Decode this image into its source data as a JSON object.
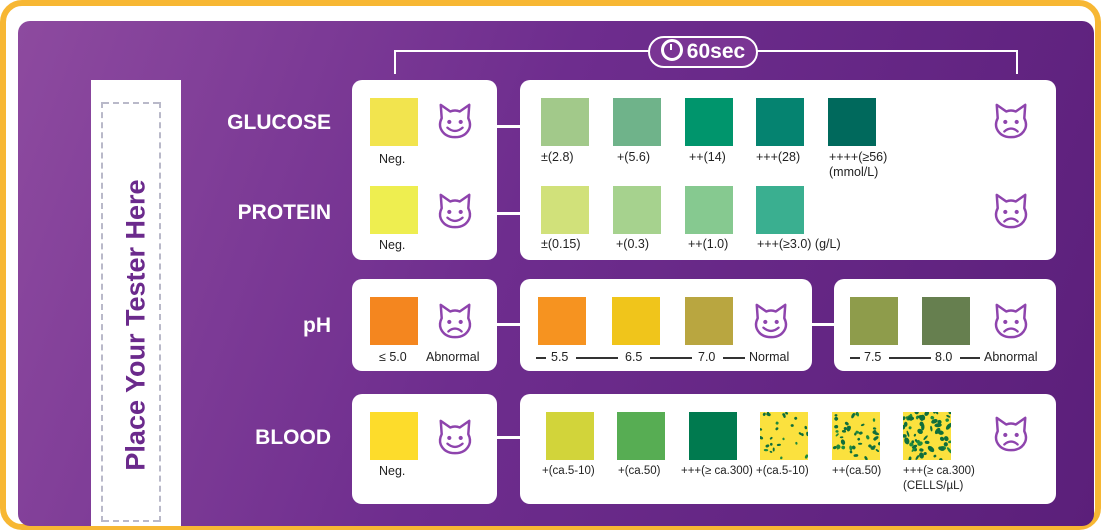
{
  "timer": {
    "label": "60sec",
    "icon": "clock-icon"
  },
  "tester": {
    "label": "Place Your Tester Here"
  },
  "rows": {
    "glucose": {
      "label": "GLUCOSE",
      "normal": {
        "label": "Neg.",
        "color": "#f2e44e"
      },
      "swatches": [
        {
          "label": "±(2.8)",
          "color": "#a2c98a"
        },
        {
          "label": "+(5.6)",
          "color": "#6fb38a"
        },
        {
          "label": "++(14)",
          "color": "#00956c"
        },
        {
          "label": "+++(28)",
          "color": "#058370"
        },
        {
          "label": "++++(≥56)",
          "color": "#00695c"
        }
      ],
      "unit": "(mmol/L)"
    },
    "protein": {
      "label": "PROTEIN",
      "normal": {
        "label": "Neg.",
        "color": "#eeee50"
      },
      "swatches": [
        {
          "label": "±(0.15)",
          "color": "#d1e17a"
        },
        {
          "label": "+(0.3)",
          "color": "#a6d28e"
        },
        {
          "label": "++(1.0)",
          "color": "#86c990"
        },
        {
          "label": "+++(≥3.0) (g/L)",
          "color": "#3aaf90"
        }
      ]
    },
    "ph": {
      "label": "pH",
      "low": {
        "value": "≤ 5.0",
        "status": "Abnormal",
        "color": "#f4861f"
      },
      "mid": [
        {
          "value": "5.5",
          "color": "#f69320"
        },
        {
          "value": "6.5",
          "color": "#f0c51b"
        },
        {
          "value": "7.0",
          "color": "#b9a640"
        }
      ],
      "mid_status": "Normal",
      "high": [
        {
          "value": "7.5",
          "color": "#8e9c4b"
        },
        {
          "value": "8.0",
          "color": "#667f4f"
        }
      ],
      "high_status": "Abnormal"
    },
    "blood": {
      "label": "BLOOD",
      "normal": {
        "label": "Neg.",
        "color": "#fddc2b"
      },
      "swatches": [
        {
          "label": "+(ca.5-10)",
          "color": "#d2d43a",
          "pattern": "solid"
        },
        {
          "label": "+(ca.50)",
          "color": "#57ad53",
          "pattern": "solid"
        },
        {
          "label": "+++(≥ ca.300)",
          "color": "#007a4f",
          "pattern": "solid"
        },
        {
          "label": "+(ca.5-10)",
          "color": "#fbe13e",
          "pattern": "speckle-light"
        },
        {
          "label": "++(ca.50)",
          "color": "#fbe13e",
          "pattern": "speckle-medium"
        },
        {
          "label": "+++(≥ ca.300)",
          "color": "#fbe13e",
          "pattern": "speckle-heavy"
        }
      ],
      "unit": "(CELLS/µL)"
    }
  },
  "colors": {
    "accent": "#6b2a8c",
    "frame": "#f7b733",
    "happy_cat": "#8e44ad",
    "sad_cat": "#8e44ad"
  },
  "icons": {
    "happy": "happy-cat-icon",
    "sad": "sad-cat-icon"
  }
}
